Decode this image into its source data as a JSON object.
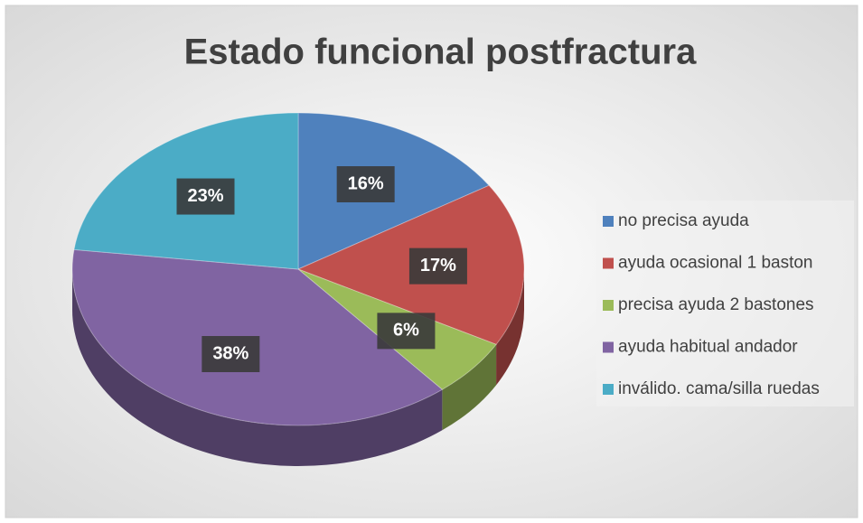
{
  "chart_data": {
    "type": "pie",
    "title": "Estado funcional postfractura",
    "categories": [
      "no precisa ayuda",
      "ayuda ocasional 1 baston",
      "precisa ayuda 2 bastones",
      "ayuda habitual andador",
      "inválido. cama/silla ruedas"
    ],
    "values": [
      16,
      17,
      6,
      38,
      23
    ],
    "value_labels": [
      "16%",
      "17%",
      "6%",
      "38%",
      "23%"
    ],
    "colors": [
      "#4f81bd",
      "#c0504d",
      "#9bbb59",
      "#8064a2",
      "#4bacc6"
    ],
    "legend": "right"
  }
}
